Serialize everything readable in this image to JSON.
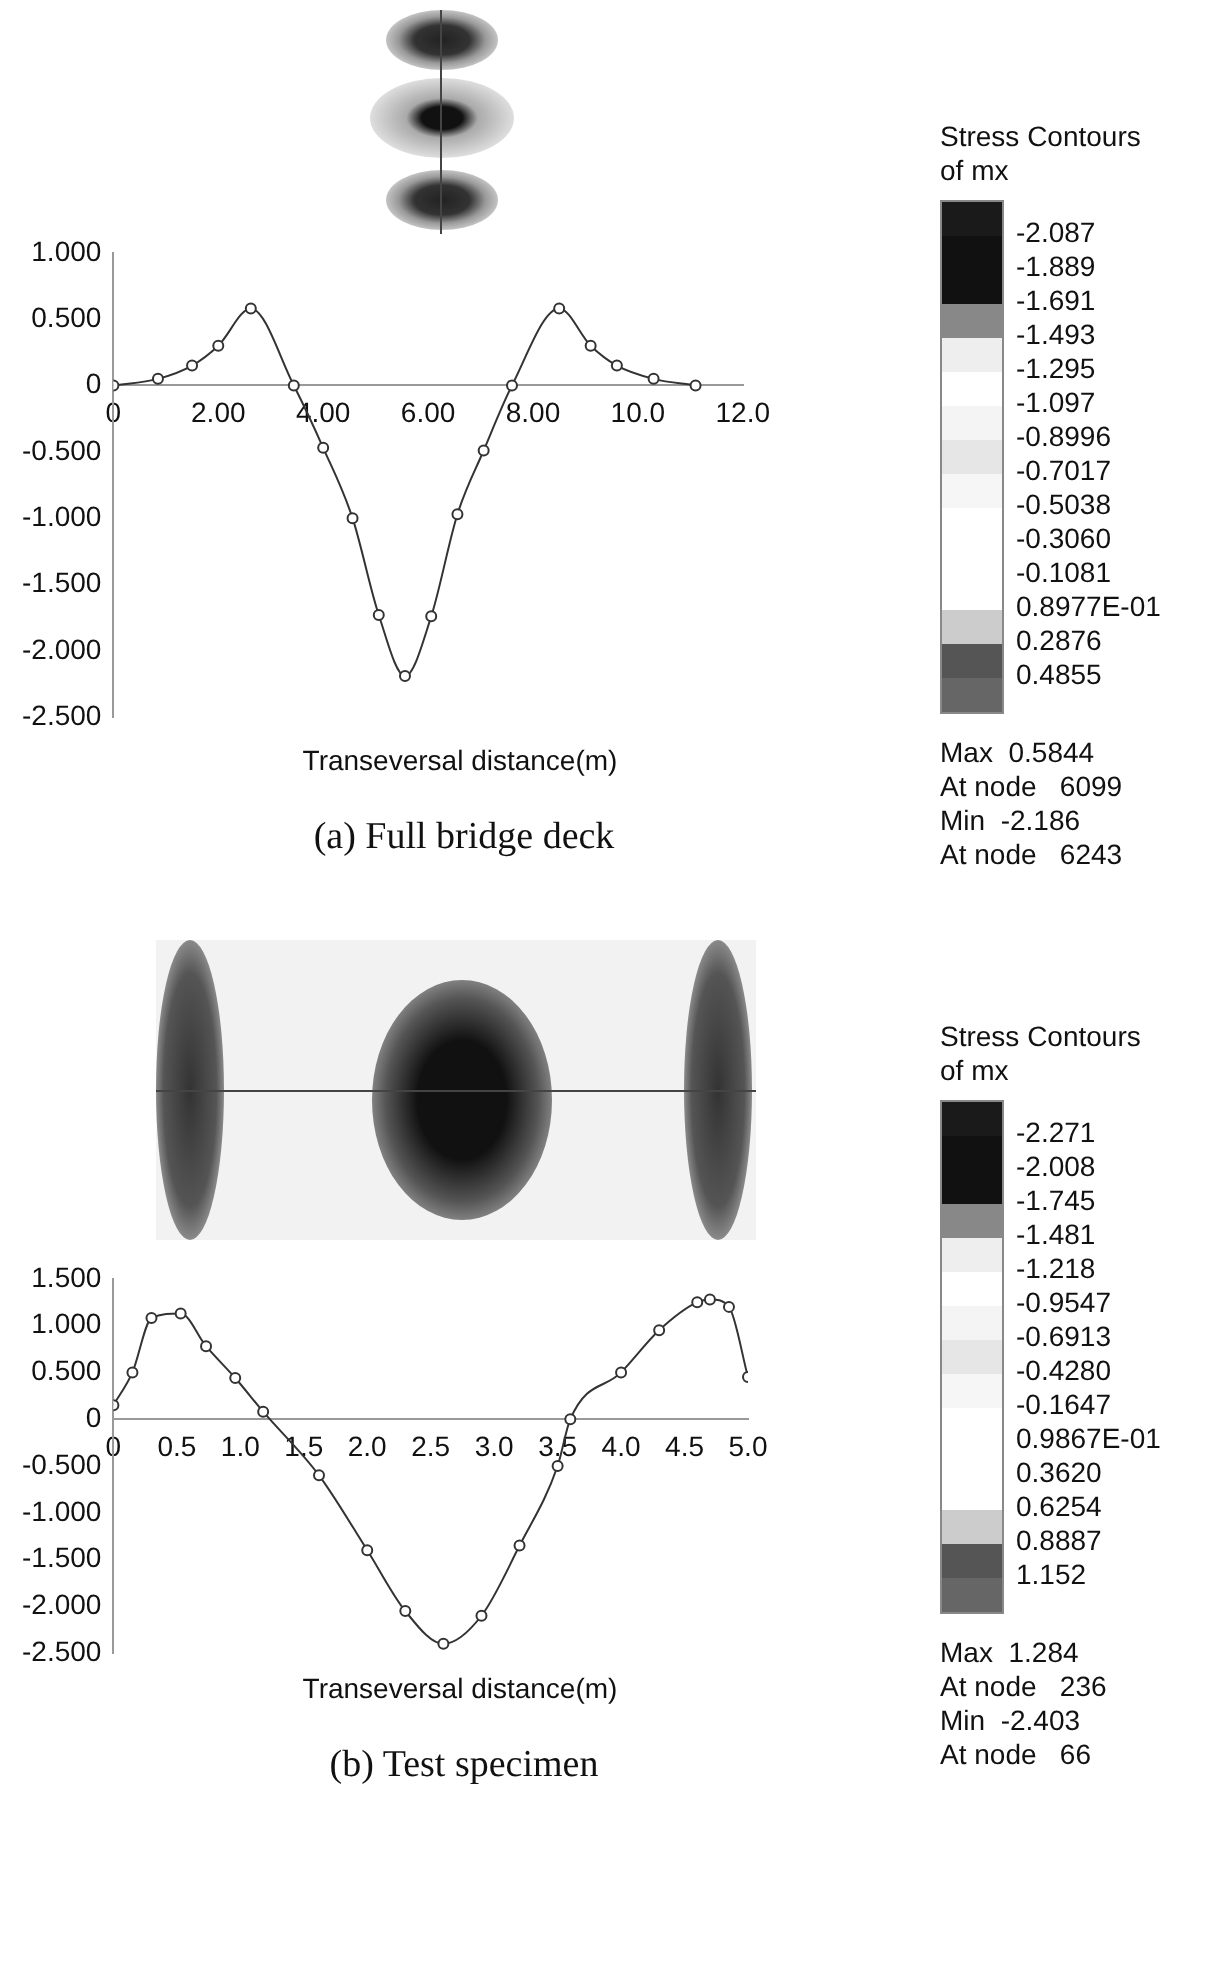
{
  "chart_data": [
    {
      "type": "line",
      "title": "(a) Full bridge deck",
      "xlabel": "Transeversal distance(m)",
      "legend_title": "Stress Contours of mx",
      "x": [
        0,
        0.85,
        1.5,
        2.0,
        2.62,
        3.44,
        4.0,
        4.56,
        5.06,
        5.56,
        6.06,
        6.56,
        7.06,
        7.6,
        8.5,
        9.1,
        9.6,
        10.3,
        11.1
      ],
      "values": [
        0,
        0.05,
        0.15,
        0.3,
        0.58,
        0,
        -0.47,
        -1.0,
        -1.73,
        -2.19,
        -1.74,
        -0.97,
        -0.49,
        0,
        0.58,
        0.3,
        0.15,
        0.05,
        0
      ],
      "color": "#333333",
      "marker": "circle",
      "xlim": [
        0,
        12
      ],
      "xticks": [
        0,
        {
          "value": 2,
          "label": "2.00"
        },
        {
          "value": 4,
          "label": "4.00"
        },
        {
          "value": 6,
          "label": "6.00"
        },
        {
          "value": 8,
          "label": "8.00"
        },
        {
          "value": 10,
          "label": "10.0"
        },
        {
          "value": 12,
          "label": "12.0"
        }
      ],
      "ylim": [
        -2.5,
        1.0
      ],
      "yticks": [
        {
          "value": 1,
          "label": "1.000"
        },
        {
          "value": 0.5,
          "label": "0.500"
        },
        0,
        {
          "value": -0.5,
          "label": "-0.500"
        },
        {
          "value": -1,
          "label": "-1.000"
        },
        {
          "value": -1.5,
          "label": "-1.500"
        },
        {
          "value": -2,
          "label": "-2.000"
        },
        {
          "value": -2.5,
          "label": "-2.500"
        }
      ],
      "annotations": [
        "-2.087",
        "-1.889",
        "-1.691",
        "-1.493",
        "-1.295",
        "-1.097",
        "-0.8996",
        "-0.7017",
        "-0.5038",
        "-0.3060",
        "-0.1081",
        "0.8977E-01",
        "0.2876",
        "0.4855",
        "Max  0.5844",
        "At node   6099",
        "Min  -2.186",
        "At node   6243"
      ]
    },
    {
      "type": "line",
      "title": "(b) Test specimen",
      "xlabel": "Transeversal distance(m)",
      "legend_title": "Stress Contours of mx",
      "x": [
        0,
        0.15,
        0.3,
        0.53,
        0.73,
        0.96,
        1.18,
        1.62,
        2.0,
        2.3,
        2.6,
        2.9,
        3.2,
        3.5,
        3.6,
        4.0,
        4.3,
        4.6,
        4.7,
        4.85,
        5.0
      ],
      "values": [
        0.15,
        0.5,
        1.08,
        1.13,
        0.78,
        0.44,
        0.08,
        -0.6,
        -1.4,
        -2.05,
        -2.4,
        -2.1,
        -1.35,
        -0.5,
        0,
        0.5,
        0.95,
        1.25,
        1.28,
        1.2,
        0.45
      ],
      "color": "#333333",
      "marker": "circle",
      "xlim": [
        0,
        5
      ],
      "xticks": [
        0,
        0.5,
        {
          "value": 1,
          "label": "1.0"
        },
        1.5,
        {
          "value": 2,
          "label": "2.0"
        },
        2.5,
        {
          "value": 3,
          "label": "3.0"
        },
        3.5,
        {
          "value": 4,
          "label": "4.0"
        },
        4.5,
        {
          "value": 5,
          "label": "5.0"
        }
      ],
      "ylim": [
        -2.5,
        1.5
      ],
      "yticks": [
        {
          "value": 1.5,
          "label": "1.500"
        },
        {
          "value": 1,
          "label": "1.000"
        },
        {
          "value": 0.5,
          "label": "0.500"
        },
        0,
        {
          "value": -0.5,
          "label": "-0.500"
        },
        {
          "value": -1,
          "label": "-1.000"
        },
        {
          "value": -1.5,
          "label": "-1.500"
        },
        {
          "value": -2,
          "label": "-2.000"
        },
        {
          "value": -2.5,
          "label": "-2.500"
        }
      ],
      "annotations": [
        "-2.271",
        "-2.008",
        "-1.745",
        "-1.481",
        "-1.218",
        "-0.9547",
        "-0.6913",
        "-0.4280",
        "-0.1647",
        "0.9867E-01",
        "0.3620",
        "0.6254",
        "0.8887",
        "1.152",
        "Max  1.284",
        "At node   236",
        "Min  -2.403",
        "At node   66"
      ]
    }
  ]
}
